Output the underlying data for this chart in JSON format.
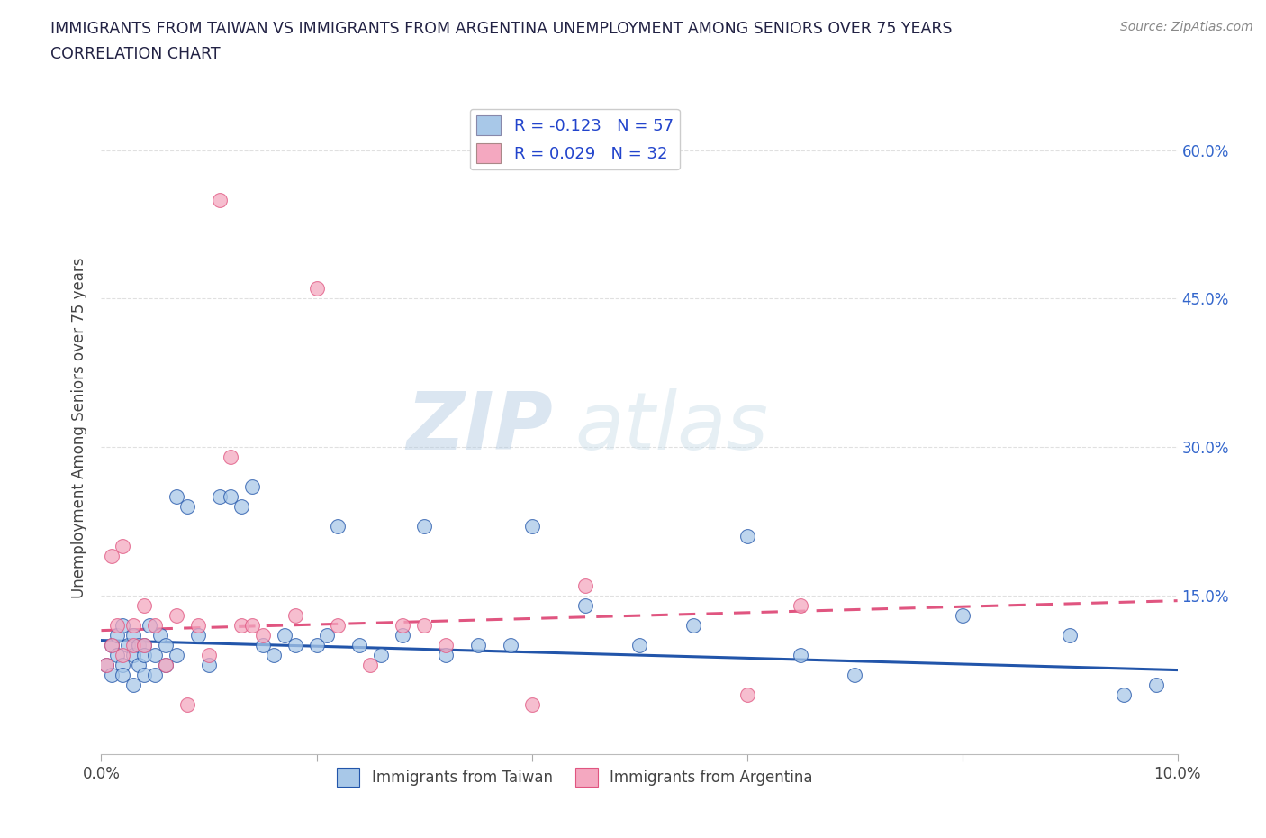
{
  "title_line1": "IMMIGRANTS FROM TAIWAN VS IMMIGRANTS FROM ARGENTINA UNEMPLOYMENT AMONG SENIORS OVER 75 YEARS",
  "title_line2": "CORRELATION CHART",
  "source_text": "Source: ZipAtlas.com",
  "ylabel": "Unemployment Among Seniors over 75 years",
  "xlim": [
    0.0,
    0.1
  ],
  "ylim": [
    -0.01,
    0.65
  ],
  "yticks": [
    0.15,
    0.3,
    0.45,
    0.6
  ],
  "ytick_labels": [
    "15.0%",
    "30.0%",
    "45.0%",
    "60.0%"
  ],
  "xticks": [
    0.0,
    0.02,
    0.04,
    0.06,
    0.08,
    0.1
  ],
  "xtick_labels": [
    "0.0%",
    "",
    "",
    "",
    "",
    "10.0%"
  ],
  "taiwan_R": -0.123,
  "taiwan_N": 57,
  "argentina_R": 0.029,
  "argentina_N": 32,
  "taiwan_color": "#a8c8e8",
  "argentina_color": "#f4a8c0",
  "taiwan_line_color": "#2255aa",
  "argentina_line_color": "#e05580",
  "grid_color": "#dddddd",
  "watermark": "ZIPatlas",
  "taiwan_trend_x0": 0.0,
  "taiwan_trend_y0": 0.105,
  "taiwan_trend_x1": 0.1,
  "taiwan_trend_y1": 0.075,
  "argentina_trend_x0": 0.0,
  "argentina_trend_y0": 0.115,
  "argentina_trend_x1": 0.1,
  "argentina_trend_y1": 0.145,
  "taiwan_x": [
    0.0005,
    0.001,
    0.001,
    0.0015,
    0.0015,
    0.002,
    0.002,
    0.002,
    0.0025,
    0.003,
    0.003,
    0.003,
    0.0035,
    0.0035,
    0.004,
    0.004,
    0.004,
    0.0045,
    0.005,
    0.005,
    0.0055,
    0.006,
    0.006,
    0.007,
    0.007,
    0.008,
    0.009,
    0.01,
    0.011,
    0.012,
    0.013,
    0.014,
    0.015,
    0.016,
    0.017,
    0.018,
    0.02,
    0.021,
    0.022,
    0.024,
    0.026,
    0.028,
    0.03,
    0.032,
    0.035,
    0.038,
    0.04,
    0.045,
    0.05,
    0.055,
    0.06,
    0.065,
    0.07,
    0.08,
    0.09,
    0.095,
    0.098
  ],
  "taiwan_y": [
    0.08,
    0.1,
    0.07,
    0.09,
    0.11,
    0.08,
    0.12,
    0.07,
    0.1,
    0.09,
    0.11,
    0.06,
    0.08,
    0.1,
    0.1,
    0.07,
    0.09,
    0.12,
    0.09,
    0.07,
    0.11,
    0.1,
    0.08,
    0.25,
    0.09,
    0.24,
    0.11,
    0.08,
    0.25,
    0.25,
    0.24,
    0.26,
    0.1,
    0.09,
    0.11,
    0.1,
    0.1,
    0.11,
    0.22,
    0.1,
    0.09,
    0.11,
    0.22,
    0.09,
    0.1,
    0.1,
    0.22,
    0.14,
    0.1,
    0.12,
    0.21,
    0.09,
    0.07,
    0.13,
    0.11,
    0.05,
    0.06
  ],
  "argentina_x": [
    0.0005,
    0.001,
    0.001,
    0.0015,
    0.002,
    0.002,
    0.003,
    0.003,
    0.004,
    0.004,
    0.005,
    0.006,
    0.007,
    0.008,
    0.009,
    0.01,
    0.011,
    0.012,
    0.013,
    0.014,
    0.015,
    0.018,
    0.02,
    0.022,
    0.025,
    0.028,
    0.03,
    0.032,
    0.04,
    0.045,
    0.06,
    0.065
  ],
  "argentina_y": [
    0.08,
    0.1,
    0.19,
    0.12,
    0.2,
    0.09,
    0.12,
    0.1,
    0.14,
    0.1,
    0.12,
    0.08,
    0.13,
    0.04,
    0.12,
    0.09,
    0.55,
    0.29,
    0.12,
    0.12,
    0.11,
    0.13,
    0.46,
    0.12,
    0.08,
    0.12,
    0.12,
    0.1,
    0.04,
    0.16,
    0.05,
    0.14
  ]
}
